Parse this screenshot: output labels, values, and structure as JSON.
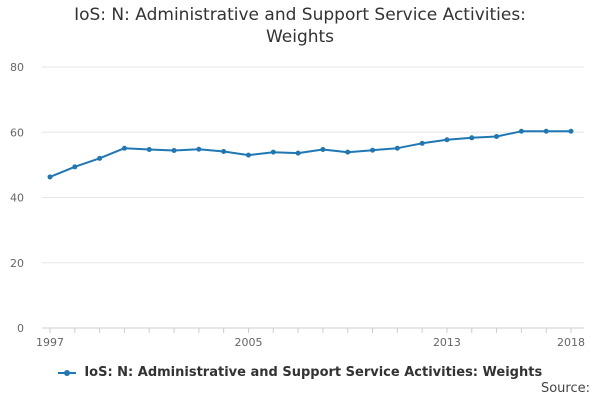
{
  "chart_data": {
    "type": "line",
    "title_lines": [
      "IoS: N: Administrative and Support Service Activities:",
      "Weights"
    ],
    "x": [
      1997,
      1998,
      1999,
      2000,
      2001,
      2002,
      2003,
      2004,
      2005,
      2006,
      2007,
      2008,
      2009,
      2010,
      2011,
      2012,
      2013,
      2014,
      2015,
      2016,
      2017,
      2018
    ],
    "series": [
      {
        "name": "IoS: N: Administrative and Support Service Activities: Weights",
        "color": "#1f78b4",
        "values": [
          46.3,
          49.4,
          52.0,
          55.1,
          54.7,
          54.4,
          54.8,
          54.1,
          53.0,
          53.9,
          53.6,
          54.7,
          53.9,
          54.5,
          55.1,
          56.6,
          57.7,
          58.3,
          58.7,
          60.3,
          60.3,
          60.3
        ]
      }
    ],
    "ylim": [
      0,
      80
    ],
    "yticks": [
      0,
      20,
      40,
      60,
      80
    ],
    "xticks": [
      1997,
      2005,
      2013,
      2018
    ],
    "xlabel": "",
    "ylabel": "",
    "grid": true,
    "legend_position": "bottom"
  },
  "source_label": "Source:"
}
